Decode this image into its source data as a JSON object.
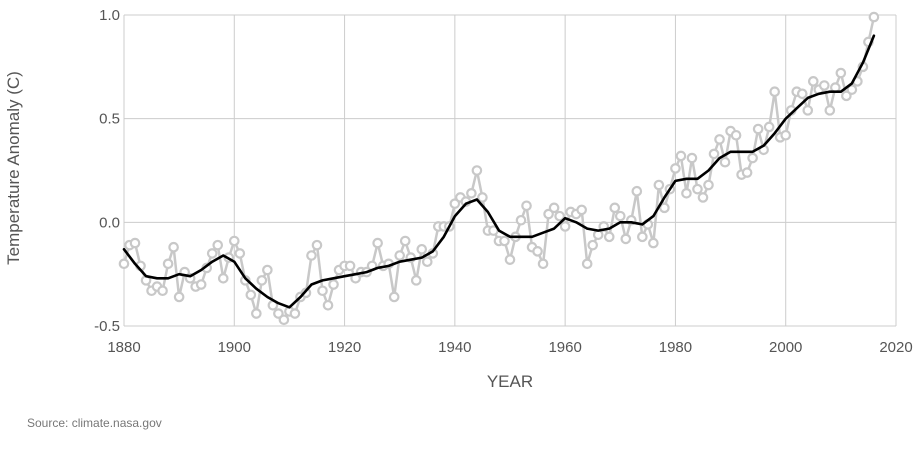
{
  "chart_data": {
    "type": "line",
    "xlabel": "YEAR",
    "ylabel": "Temperature Anomaly (C)",
    "xlim": [
      1880,
      2020
    ],
    "ylim": [
      -0.5,
      1.0
    ],
    "x_ticks": [
      "1880",
      "1900",
      "1920",
      "1940",
      "1960",
      "1980",
      "2000",
      "2020"
    ],
    "y_ticks": [
      "-0.5",
      "0.0",
      "0.5",
      "1.0"
    ],
    "grid": true,
    "legend": "none",
    "colors": {
      "annual": "#c8c8c8",
      "smoothed": "#000000",
      "grid": "#cccccc"
    },
    "series": [
      {
        "style": "annual-points",
        "x": [
          1880,
          1881,
          1882,
          1883,
          1884,
          1885,
          1886,
          1887,
          1888,
          1889,
          1890,
          1891,
          1892,
          1893,
          1894,
          1895,
          1896,
          1897,
          1898,
          1899,
          1900,
          1901,
          1902,
          1903,
          1904,
          1905,
          1906,
          1907,
          1908,
          1909,
          1910,
          1911,
          1912,
          1913,
          1914,
          1915,
          1916,
          1917,
          1918,
          1919,
          1920,
          1921,
          1922,
          1923,
          1924,
          1925,
          1926,
          1927,
          1928,
          1929,
          1930,
          1931,
          1932,
          1933,
          1934,
          1935,
          1936,
          1937,
          1938,
          1939,
          1940,
          1941,
          1942,
          1943,
          1944,
          1945,
          1946,
          1947,
          1948,
          1949,
          1950,
          1951,
          1952,
          1953,
          1954,
          1955,
          1956,
          1957,
          1958,
          1959,
          1960,
          1961,
          1962,
          1963,
          1964,
          1965,
          1966,
          1967,
          1968,
          1969,
          1970,
          1971,
          1972,
          1973,
          1974,
          1975,
          1976,
          1977,
          1978,
          1979,
          1980,
          1981,
          1982,
          1983,
          1984,
          1985,
          1986,
          1987,
          1988,
          1989,
          1990,
          1991,
          1992,
          1993,
          1994,
          1995,
          1996,
          1997,
          1998,
          1999,
          2000,
          2001,
          2002,
          2003,
          2004,
          2005,
          2006,
          2007,
          2008,
          2009,
          2010,
          2011,
          2012,
          2013,
          2014,
          2015,
          2016
        ],
        "values": [
          -0.2,
          -0.11,
          -0.1,
          -0.21,
          -0.28,
          -0.33,
          -0.31,
          -0.33,
          -0.2,
          -0.12,
          -0.36,
          -0.24,
          -0.27,
          -0.31,
          -0.3,
          -0.22,
          -0.15,
          -0.11,
          -0.27,
          -0.17,
          -0.09,
          -0.15,
          -0.28,
          -0.35,
          -0.44,
          -0.28,
          -0.23,
          -0.4,
          -0.44,
          -0.47,
          -0.43,
          -0.44,
          -0.36,
          -0.34,
          -0.16,
          -0.11,
          -0.33,
          -0.4,
          -0.3,
          -0.23,
          -0.21,
          -0.21,
          -0.27,
          -0.24,
          -0.24,
          -0.21,
          -0.1,
          -0.21,
          -0.2,
          -0.36,
          -0.16,
          -0.09,
          -0.17,
          -0.28,
          -0.13,
          -0.19,
          -0.15,
          -0.02,
          -0.02,
          -0.02,
          0.09,
          0.12,
          0.1,
          0.14,
          0.25,
          0.12,
          -0.04,
          -0.04,
          -0.09,
          -0.09,
          -0.18,
          -0.07,
          0.01,
          0.08,
          -0.12,
          -0.14,
          -0.2,
          0.04,
          0.07,
          0.03,
          -0.02,
          0.05,
          0.04,
          0.06,
          -0.2,
          -0.11,
          -0.06,
          -0.02,
          -0.07,
          0.07,
          0.03,
          -0.08,
          0.01,
          0.15,
          -0.07,
          -0.01,
          -0.1,
          0.18,
          0.07,
          0.16,
          0.26,
          0.32,
          0.14,
          0.31,
          0.16,
          0.12,
          0.18,
          0.33,
          0.4,
          0.29,
          0.44,
          0.42,
          0.23,
          0.24,
          0.31,
          0.45,
          0.35,
          0.46,
          0.63,
          0.41,
          0.42,
          0.54,
          0.63,
          0.62,
          0.54,
          0.68,
          0.64,
          0.66,
          0.54,
          0.65,
          0.72,
          0.61,
          0.64,
          0.68,
          0.75,
          0.87,
          0.99
        ]
      },
      {
        "style": "smoothed-line",
        "x": [
          1880,
          1882,
          1884,
          1886,
          1888,
          1890,
          1892,
          1894,
          1896,
          1898,
          1900,
          1902,
          1904,
          1906,
          1908,
          1910,
          1912,
          1914,
          1916,
          1918,
          1920,
          1922,
          1924,
          1926,
          1928,
          1930,
          1932,
          1934,
          1936,
          1938,
          1940,
          1942,
          1944,
          1946,
          1948,
          1950,
          1952,
          1954,
          1956,
          1958,
          1960,
          1962,
          1964,
          1966,
          1968,
          1970,
          1972,
          1974,
          1976,
          1978,
          1980,
          1982,
          1984,
          1986,
          1988,
          1990,
          1992,
          1994,
          1996,
          1998,
          2000,
          2002,
          2004,
          2006,
          2008,
          2010,
          2012,
          2014,
          2016
        ],
        "values": [
          -0.13,
          -0.2,
          -0.26,
          -0.27,
          -0.27,
          -0.25,
          -0.26,
          -0.23,
          -0.19,
          -0.16,
          -0.19,
          -0.27,
          -0.32,
          -0.36,
          -0.39,
          -0.41,
          -0.36,
          -0.3,
          -0.28,
          -0.27,
          -0.26,
          -0.25,
          -0.24,
          -0.22,
          -0.21,
          -0.19,
          -0.18,
          -0.17,
          -0.14,
          -0.07,
          0.03,
          0.09,
          0.11,
          0.05,
          -0.04,
          -0.07,
          -0.07,
          -0.07,
          -0.05,
          -0.03,
          0.02,
          0.0,
          -0.03,
          -0.04,
          -0.03,
          0.0,
          0.0,
          -0.01,
          0.03,
          0.12,
          0.2,
          0.21,
          0.21,
          0.25,
          0.31,
          0.34,
          0.34,
          0.34,
          0.37,
          0.43,
          0.5,
          0.55,
          0.6,
          0.62,
          0.63,
          0.63,
          0.67,
          0.77,
          0.9
        ]
      }
    ]
  },
  "source_text": "Source: climate.nasa.gov"
}
